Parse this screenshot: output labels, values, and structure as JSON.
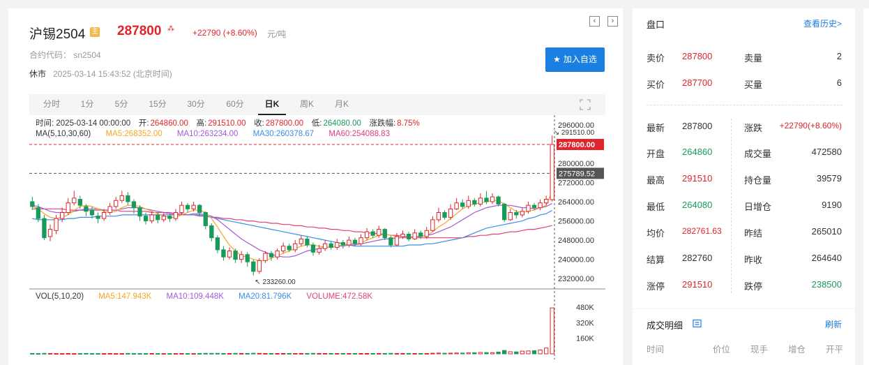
{
  "header": {
    "title": "沪锡2504",
    "main_badge": "主",
    "price": "287800",
    "change": "+22790 (+8.60%)",
    "unit": "元/吨",
    "code": "合约代码： sn2504",
    "status": "休市",
    "time": "2025-03-14 15:43:52 (北京时间)",
    "add_fav": "加入自选",
    "prev_icon": "chevron-left-icon",
    "next_icon": "chevron-right-icon"
  },
  "tabs": [
    "分时",
    "1分",
    "5分",
    "15分",
    "30分",
    "60分",
    "日K",
    "周K",
    "月K"
  ],
  "active_tab": "日K",
  "info": {
    "time": "时间: 2025-03-14 00:00:00",
    "open_label": "开:",
    "open": "264860.00",
    "high_label": "高:",
    "high": "291510.00",
    "close_label": "收:",
    "close": "287800.00",
    "low_label": "低:",
    "low": "264080.00",
    "amp_label": "涨跌幅:",
    "amp": "8.75%",
    "ma_title": "MA(5,10,30,60)",
    "ma5": "MA5:268352.00",
    "ma10": "MA10:263234.00",
    "ma30": "MA30:260378.67",
    "ma60": "MA60:254088.83",
    "vol_title": "VOL(5,10,20)",
    "vma5": "MA5:147.943K",
    "vma10": "MA10:109.448K",
    "vma20": "MA20:81.796K",
    "volume": "VOLUME:472.58K"
  },
  "axis": {
    "price_ticks": [
      "296000.00",
      "288000.00",
      "280000.00",
      "272000.00",
      "264000.00",
      "256000.00",
      "248000.00",
      "240000.00",
      "232000.00"
    ],
    "high_mark": "291510.00",
    "last_tag": "287800.00",
    "cross_tag": "275789.52",
    "low_mark": "233260.00",
    "vol_ticks": [
      "480K",
      "320K",
      "160K"
    ]
  },
  "colors": {
    "up": "#e0242b",
    "down": "#1a9a5a",
    "ma5": "#f5a623",
    "ma10": "#a25bd8",
    "ma30": "#3a8ee6",
    "ma60": "#e0407a",
    "accent": "#1a7fe0"
  },
  "chart_data": {
    "type": "candlestick",
    "ylim": [
      228000,
      300000
    ],
    "last": 287800,
    "cross": 275789.52,
    "candles": [
      [
        264000,
        262000,
        266000,
        260500
      ],
      [
        261500,
        257000,
        263000,
        255500
      ],
      [
        257000,
        249000,
        258500,
        248000
      ],
      [
        249500,
        252500,
        254500,
        247500
      ],
      [
        252000,
        257000,
        258500,
        250500
      ],
      [
        257000,
        259500,
        261500,
        255500
      ],
      [
        259500,
        263500,
        265500,
        258500
      ],
      [
        263500,
        265500,
        268500,
        262500
      ],
      [
        265000,
        262500,
        266500,
        261000
      ],
      [
        262000,
        260000,
        263000,
        258000
      ],
      [
        260500,
        258500,
        262000,
        257000
      ],
      [
        258000,
        257000,
        259500,
        255000
      ],
      [
        257000,
        259500,
        261000,
        256000
      ],
      [
        259500,
        262000,
        263500,
        258500
      ],
      [
        262000,
        264500,
        266000,
        261000
      ],
      [
        264500,
        266500,
        268500,
        263500
      ],
      [
        266500,
        264000,
        268000,
        262500
      ],
      [
        264000,
        261500,
        265000,
        259000
      ],
      [
        261500,
        258000,
        262500,
        256000
      ],
      [
        258000,
        256000,
        259500,
        254500
      ],
      [
        256000,
        258500,
        260000,
        255000
      ],
      [
        258500,
        256500,
        259500,
        255000
      ],
      [
        256500,
        258000,
        259500,
        255500
      ],
      [
        258000,
        257000,
        259000,
        255500
      ],
      [
        257000,
        259500,
        261000,
        256000
      ],
      [
        259500,
        262500,
        264000,
        258500
      ],
      [
        262500,
        261000,
        263500,
        259500
      ],
      [
        261000,
        262500,
        264000,
        260000
      ],
      [
        262500,
        259500,
        263000,
        258000
      ],
      [
        259500,
        254000,
        260000,
        252500
      ],
      [
        254000,
        249000,
        255000,
        247500
      ],
      [
        249000,
        244000,
        250000,
        242500
      ],
      [
        244000,
        241000,
        245500,
        239500
      ],
      [
        241000,
        243500,
        245000,
        240000
      ],
      [
        243500,
        240000,
        244500,
        238500
      ],
      [
        240000,
        242000,
        243500,
        238500
      ],
      [
        242000,
        239000,
        243000,
        237000
      ],
      [
        239000,
        235000,
        240000,
        233260
      ],
      [
        235000,
        239500,
        240500,
        234000
      ],
      [
        239500,
        242500,
        243500,
        238500
      ],
      [
        242500,
        241000,
        243500,
        239500
      ],
      [
        241000,
        243500,
        244500,
        240000
      ],
      [
        243500,
        245500,
        247000,
        242500
      ],
      [
        245500,
        244000,
        246500,
        243000
      ],
      [
        244000,
        246500,
        248000,
        243000
      ],
      [
        246500,
        248500,
        250000,
        245500
      ],
      [
        248500,
        246000,
        249500,
        245000
      ],
      [
        246000,
        243000,
        247000,
        241500
      ],
      [
        243000,
        244500,
        246000,
        242000
      ],
      [
        244500,
        246500,
        248000,
        243500
      ],
      [
        246500,
        245000,
        247500,
        244000
      ],
      [
        245000,
        247000,
        248500,
        244000
      ],
      [
        247000,
        246000,
        248000,
        244500
      ],
      [
        246000,
        248000,
        249500,
        245000
      ],
      [
        248000,
        246500,
        249000,
        245500
      ],
      [
        246500,
        249000,
        250500,
        245500
      ],
      [
        249000,
        251500,
        253000,
        248000
      ],
      [
        251500,
        250000,
        252500,
        249000
      ],
      [
        250000,
        252500,
        254000,
        249000
      ],
      [
        252500,
        249000,
        253000,
        248000
      ],
      [
        249000,
        246000,
        250000,
        245000
      ],
      [
        246000,
        249500,
        251000,
        245500
      ],
      [
        249500,
        250500,
        252000,
        248500
      ],
      [
        250500,
        248500,
        251500,
        247500
      ],
      [
        248500,
        251000,
        252500,
        248000
      ],
      [
        251000,
        249500,
        252000,
        248500
      ],
      [
        249500,
        252000,
        253500,
        248500
      ],
      [
        252000,
        256500,
        258000,
        251500
      ],
      [
        256500,
        259500,
        261500,
        255500
      ],
      [
        259500,
        257500,
        260500,
        256500
      ],
      [
        257500,
        261000,
        263000,
        256500
      ],
      [
        261000,
        263500,
        265500,
        260500
      ],
      [
        263500,
        262000,
        265000,
        261000
      ],
      [
        262000,
        264500,
        266500,
        261000
      ],
      [
        264500,
        263000,
        265500,
        262000
      ],
      [
        263000,
        265500,
        267500,
        262000
      ],
      [
        265500,
        264000,
        268500,
        263000
      ],
      [
        264000,
        266000,
        267500,
        263000
      ],
      [
        266000,
        263000,
        266500,
        262000
      ],
      [
        263000,
        256500,
        263500,
        255500
      ],
      [
        256500,
        259500,
        261000,
        256000
      ],
      [
        259500,
        258500,
        260500,
        257000
      ],
      [
        258500,
        260000,
        261500,
        257500
      ],
      [
        260000,
        262500,
        264000,
        259000
      ],
      [
        262500,
        261500,
        263500,
        260500
      ],
      [
        261500,
        263500,
        265000,
        260500
      ],
      [
        263500,
        265010,
        266500,
        262500
      ],
      [
        264860,
        287800,
        291510,
        264080
      ]
    ],
    "ma5": [
      262000,
      261000,
      259000,
      257500,
      257000,
      257500,
      258500,
      260500,
      262000,
      262500,
      262000,
      261000,
      260000,
      259500,
      260000,
      261500,
      262500,
      262500,
      262000,
      261000,
      260000,
      259000,
      258000,
      257500,
      257500,
      258500,
      259500,
      260500,
      260500,
      259500,
      257000,
      253500,
      249500,
      246000,
      243500,
      241500,
      241000,
      240000,
      239500,
      239500,
      240500,
      241500,
      242500,
      243500,
      244500,
      245500,
      246000,
      246000,
      245500,
      245000,
      245000,
      245500,
      246000,
      246500,
      246500,
      247000,
      248000,
      249000,
      250000,
      250500,
      250000,
      249500,
      249500,
      249000,
      249000,
      249500,
      250000,
      251500,
      253500,
      255000,
      257000,
      259000,
      261000,
      262500,
      263000,
      263500,
      264000,
      264500,
      264500,
      263000,
      261500,
      260000,
      259500,
      260000,
      260500,
      261500,
      262500,
      268352
    ],
    "ma10": [
      262500,
      262000,
      261000,
      260000,
      259500,
      259500,
      259500,
      260000,
      260500,
      261000,
      261000,
      261000,
      260500,
      260500,
      260500,
      261000,
      261500,
      261500,
      261500,
      261000,
      260500,
      260000,
      259500,
      259000,
      258500,
      258500,
      258500,
      259000,
      259000,
      258500,
      258000,
      256500,
      254500,
      252500,
      250500,
      248500,
      247000,
      245500,
      244000,
      243000,
      242000,
      241500,
      241000,
      241000,
      241500,
      242500,
      243500,
      244000,
      244500,
      245000,
      245000,
      245500,
      245500,
      246000,
      246000,
      246500,
      247000,
      247500,
      248000,
      248500,
      248500,
      249000,
      249000,
      249000,
      249500,
      249500,
      250000,
      250500,
      251500,
      252500,
      253500,
      255000,
      256500,
      258000,
      259500,
      260500,
      261500,
      262000,
      262500,
      262500,
      262500,
      262000,
      261500,
      261500,
      261000,
      261500,
      262000,
      263234
    ],
    "ma30": [
      257000,
      256500,
      256500,
      256500,
      256500,
      256500,
      257000,
      257000,
      257500,
      257500,
      257500,
      258000,
      258000,
      258000,
      258000,
      258500,
      258500,
      258500,
      258500,
      258500,
      258500,
      258500,
      258500,
      258500,
      258500,
      258500,
      258500,
      258500,
      258500,
      258000,
      257500,
      257000,
      256500,
      256000,
      255500,
      255000,
      254500,
      254000,
      253500,
      253000,
      252500,
      252000,
      251500,
      251000,
      250500,
      250000,
      249500,
      249000,
      248500,
      248000,
      247500,
      247000,
      246500,
      246000,
      245500,
      245500,
      245500,
      245500,
      245500,
      245500,
      245500,
      245500,
      245500,
      246000,
      246000,
      246000,
      246500,
      246500,
      247000,
      247500,
      248000,
      248500,
      249000,
      250000,
      251000,
      252000,
      253000,
      253500,
      254000,
      254500,
      255000,
      255500,
      256000,
      257000,
      257500,
      258500,
      259000,
      260378
    ],
    "ma60": [
      261000,
      261000,
      261000,
      261000,
      261000,
      261000,
      260500,
      260500,
      260500,
      260500,
      260500,
      260500,
      260500,
      260500,
      260500,
      260000,
      260000,
      260000,
      260000,
      260000,
      259500,
      259500,
      259500,
      259500,
      259000,
      259000,
      258500,
      258500,
      258000,
      258000,
      257500,
      257500,
      257000,
      257000,
      256500,
      256500,
      256000,
      256000,
      255500,
      255500,
      255000,
      255000,
      254500,
      254500,
      254000,
      254000,
      253500,
      253500,
      253000,
      253000,
      252500,
      252500,
      252000,
      252000,
      251500,
      251500,
      251000,
      251000,
      250500,
      250500,
      250000,
      250000,
      249500,
      249500,
      249000,
      249000,
      249000,
      249000,
      249000,
      249000,
      249000,
      249000,
      249000,
      249500,
      249500,
      250000,
      250000,
      250500,
      250500,
      251000,
      251500,
      251500,
      252000,
      252500,
      252500,
      253000,
      253500,
      254088
    ],
    "volume": [
      4,
      3,
      5,
      4,
      3,
      3,
      4,
      3,
      3,
      4,
      3,
      3,
      3,
      4,
      3,
      3,
      4,
      3,
      3,
      3,
      4,
      3,
      3,
      3,
      3,
      4,
      3,
      3,
      4,
      5,
      5,
      5,
      4,
      4,
      5,
      4,
      4,
      6,
      5,
      4,
      4,
      4,
      4,
      4,
      4,
      4,
      4,
      5,
      4,
      4,
      4,
      4,
      4,
      4,
      4,
      4,
      4,
      4,
      4,
      4,
      5,
      4,
      4,
      4,
      4,
      4,
      4,
      6,
      8,
      6,
      7,
      9,
      8,
      10,
      11,
      14,
      13,
      12,
      18,
      35,
      22,
      20,
      28,
      30,
      32,
      40,
      60,
      472.58
    ],
    "vol_ylim": [
      0,
      560
    ]
  },
  "panel": {
    "title": "盘口",
    "history_link": "查看历史>",
    "rows": [
      {
        "l1": "卖价",
        "v1": "287800",
        "c1": "red",
        "l2": "卖量",
        "v2": "2",
        "c2": "dark"
      },
      {
        "l1": "买价",
        "v1": "287700",
        "c1": "red",
        "l2": "买量",
        "v2": "6",
        "c2": "dark"
      },
      {
        "l1": "最新",
        "v1": "287800",
        "c1": "dark",
        "l2": "涨跌",
        "v2": "+22790(+8.60%)",
        "c2": "red"
      },
      {
        "l1": "开盘",
        "v1": "264860",
        "c1": "green",
        "l2": "成交量",
        "v2": "472580",
        "c2": "dark"
      },
      {
        "l1": "最高",
        "v1": "291510",
        "c1": "red",
        "l2": "持仓量",
        "v2": "39579",
        "c2": "dark"
      },
      {
        "l1": "最低",
        "v1": "264080",
        "c1": "green",
        "l2": "日增仓",
        "v2": "9190",
        "c2": "dark"
      },
      {
        "l1": "均价",
        "v1": "282761.63",
        "c1": "red",
        "l2": "昨结",
        "v2": "265010",
        "c2": "dark"
      },
      {
        "l1": "结算",
        "v1": "282760",
        "c1": "dark",
        "l2": "昨收",
        "v2": "264640",
        "c2": "dark"
      },
      {
        "l1": "涨停",
        "v1": "291510",
        "c1": "red",
        "l2": "跌停",
        "v2": "238500",
        "c2": "green"
      }
    ]
  },
  "trades": {
    "title": "成交明细",
    "refresh": "刷新",
    "headers": [
      "时间",
      "价位",
      "现手",
      "增仓",
      "开平"
    ]
  }
}
